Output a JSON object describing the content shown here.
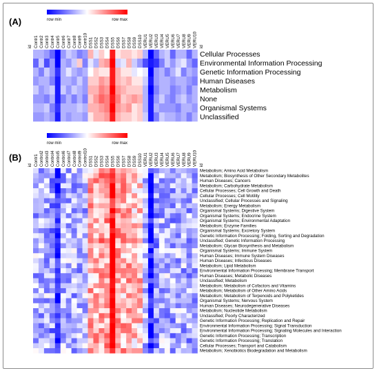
{
  "chart_data": [
    {
      "type": "heatmap",
      "panel_label": "(A)",
      "colorbar": {
        "min_label": "row min",
        "max_label": "row max",
        "colors": [
          "#0000ff",
          "#ffffff",
          "#ff0000"
        ]
      },
      "id_label": "id",
      "columns": [
        "Contr1",
        "Contr2",
        "Contr3",
        "Contr4",
        "Contr5",
        "Contr6",
        "Contr7",
        "Contr8",
        "Contr9",
        "Contr10",
        "DSS1",
        "DSS2",
        "DSS3",
        "DSS4",
        "DSS5",
        "DSS6",
        "DSS7",
        "DSS8",
        "DSS9",
        "DSS10",
        "VERU1",
        "VERU2",
        "VERU3",
        "VERU4",
        "VERU5",
        "VERU6",
        "VERU7",
        "VERU8",
        "VERU9",
        "VERU10"
      ],
      "rows": [
        "Cellular Processes",
        "Environmental Information Processing",
        "Genetic Information Processing",
        "Human Diseases",
        "Metabolism",
        "None",
        "Organismal Systems",
        "Unclassified"
      ],
      "values": [
        [
          -0.3,
          -0.3,
          -0.4,
          -0.6,
          -1.0,
          -0.4,
          -0.2,
          -0.3,
          -0.5,
          -0.4,
          0.3,
          -0.1,
          0.2,
          0.0,
          0.9,
          0.1,
          0.2,
          0.2,
          0.1,
          0.2,
          -0.3,
          -1.0,
          -0.6,
          -0.3,
          -0.2,
          -0.6,
          -0.3,
          -0.3,
          -0.6,
          -0.3
        ],
        [
          -0.6,
          -0.2,
          -0.7,
          -0.4,
          -1.0,
          -0.3,
          -0.4,
          -0.2,
          0.2,
          -0.5,
          -0.1,
          -0.3,
          0.3,
          0.4,
          1.0,
          -0.2,
          -0.1,
          0.3,
          -0.2,
          -0.4,
          -0.7,
          -0.9,
          -0.8,
          -0.5,
          -0.2,
          -0.4,
          -0.2,
          -0.1,
          -0.4,
          -0.6
        ],
        [
          -0.3,
          -0.5,
          -0.2,
          -0.4,
          -0.8,
          -0.3,
          -0.1,
          -0.3,
          -0.4,
          -0.3,
          0.0,
          0.2,
          0.1,
          0.1,
          0.9,
          0.3,
          0.1,
          0.1,
          -0.1,
          0.0,
          -0.1,
          -1.0,
          -0.4,
          -0.3,
          -0.5,
          -0.3,
          -0.1,
          -0.5,
          -0.3,
          -0.4
        ],
        [
          -0.4,
          -0.3,
          -0.3,
          -0.5,
          -0.9,
          -0.3,
          -0.3,
          -0.4,
          -0.2,
          -0.4,
          0.2,
          0.2,
          0.4,
          0.3,
          0.9,
          0.3,
          0.2,
          0.3,
          0.1,
          0.1,
          -0.2,
          -0.9,
          -0.4,
          -0.3,
          -0.3,
          -0.4,
          -0.3,
          -0.3,
          -0.4,
          -0.5
        ],
        [
          -0.2,
          -0.4,
          -0.3,
          -0.2,
          -0.9,
          -0.2,
          -0.4,
          -0.2,
          -0.3,
          -0.4,
          0.3,
          0.3,
          0.5,
          0.4,
          1.0,
          0.4,
          0.3,
          0.2,
          0.2,
          0.2,
          -0.3,
          -1.0,
          -0.5,
          -0.3,
          -0.3,
          -0.5,
          -0.4,
          -0.3,
          -0.5,
          -0.3
        ],
        [
          -0.4,
          -0.4,
          -0.5,
          -0.3,
          -0.9,
          -0.5,
          -0.3,
          -0.5,
          -0.3,
          -0.5,
          0.2,
          0.4,
          0.6,
          0.5,
          0.9,
          0.5,
          0.2,
          0.3,
          0.4,
          0.3,
          -0.3,
          -0.9,
          -0.4,
          -0.2,
          -0.4,
          -0.5,
          -0.3,
          -0.2,
          -0.4,
          -0.3
        ],
        [
          -0.3,
          -0.3,
          -0.2,
          -0.5,
          -0.8,
          -0.3,
          -0.3,
          -0.3,
          -0.2,
          -0.3,
          0.3,
          0.3,
          0.4,
          0.5,
          1.0,
          0.4,
          0.3,
          0.4,
          0.1,
          0.2,
          -0.3,
          -0.9,
          -0.3,
          -0.4,
          -0.4,
          -0.4,
          -0.5,
          -0.3,
          -0.3,
          -0.4
        ],
        [
          -0.4,
          -0.4,
          -0.3,
          -0.4,
          -0.9,
          -0.3,
          -0.4,
          -0.3,
          -0.3,
          -0.4,
          0.1,
          0.3,
          0.3,
          0.4,
          0.9,
          0.3,
          0.2,
          0.2,
          0.1,
          0.2,
          -0.2,
          -0.9,
          -0.5,
          -0.2,
          -0.3,
          -0.3,
          -0.4,
          -0.3,
          -0.5,
          -0.3
        ]
      ]
    },
    {
      "type": "heatmap",
      "panel_label": "(B)",
      "colorbar": {
        "min_label": "row min",
        "max_label": "row max",
        "colors": [
          "#0000ff",
          "#ffffff",
          "#ff0000"
        ]
      },
      "id_label": "id",
      "columns": [
        "Contr1",
        "Control2",
        "Control3",
        "Control4",
        "Control5",
        "Control6",
        "Control7",
        "Control8",
        "Control9",
        "Control10",
        "DSS1",
        "DSS2",
        "DSS3",
        "DSS4",
        "DSS5",
        "DSS6",
        "DSS7",
        "DSS8",
        "DSS9",
        "DSS10",
        "VERU1",
        "VERU2",
        "VERU3",
        "VERU4",
        "VERU5",
        "VERU6",
        "VERU7",
        "VERU8",
        "VERU9",
        "VERU10"
      ],
      "rows": [
        "Metabolism; Amino Acid Metabolism",
        "Metabolism; Biosynthesis of Other Secondary Metabolites",
        "Human Diseases; Cancers",
        "Metabolism; Carbohydrate Metabolism",
        "Cellular Processes; Cell Growth and Death",
        "Cellular Processes; Cell Motility",
        "Unclassified; Cellular Processes and Signaling",
        "Metabolism; Energy Metabolism",
        "Organismal Systems; Digestive System",
        "Organismal Systems; Endocrine System",
        "Organismal Systems; Environmental Adaptation",
        "Metabolism; Enzyme Families",
        "Organismal Systems; Excretory System",
        "Genetic Information Processing; Folding, Sorting and Degradation",
        "Unclassified; Genetic Information Processing",
        "Metabolism; Glycan Biosynthesis and Metabolism",
        "Organismal Systems; Immune System",
        "Human Diseases; Immune System Diseases",
        "Human Diseases; Infectious Diseases",
        "Metabolism; Lipid Metabolism",
        "Environmental Information Processing; Membrane Transport",
        "Human Diseases; Metabolic Diseases",
        "Unclassified; Metabolism",
        "Metabolism; Metabolism of Cofactors and Vitamins",
        "Metabolism; Metabolism of Other Amino Acids",
        "Metabolism; Metabolism of Terpenoids and Polyketides",
        "Organismal Systems; Nervous System",
        "Human Diseases; Neurodegenerative Diseases",
        "Metabolism; Nucleotide Metabolism",
        "Unclassified; Poorly Characterized",
        "Genetic Information Processing; Replication and Repair",
        "Environmental Information Processing; Signal Transduction",
        "Environmental Information Processing; Signaling Molecules and Interaction",
        "Genetic Information Processing; Transcription",
        "Genetic Information Processing; Translation",
        "Cellular Processes; Transport and Catabolism",
        "Metabolism; Xenobiotics Biodegradation and Metabolism"
      ],
      "column_profile": [
        -0.3,
        -0.3,
        -0.3,
        -0.4,
        -0.9,
        -0.3,
        -0.3,
        -0.3,
        -0.3,
        -0.3,
        0.3,
        0.3,
        0.4,
        0.4,
        1.0,
        0.35,
        0.3,
        0.3,
        0.2,
        0.25,
        -0.25,
        -0.9,
        -0.4,
        -0.3,
        -0.3,
        -0.35,
        -0.3,
        -0.3,
        -0.35,
        -0.3
      ]
    }
  ]
}
